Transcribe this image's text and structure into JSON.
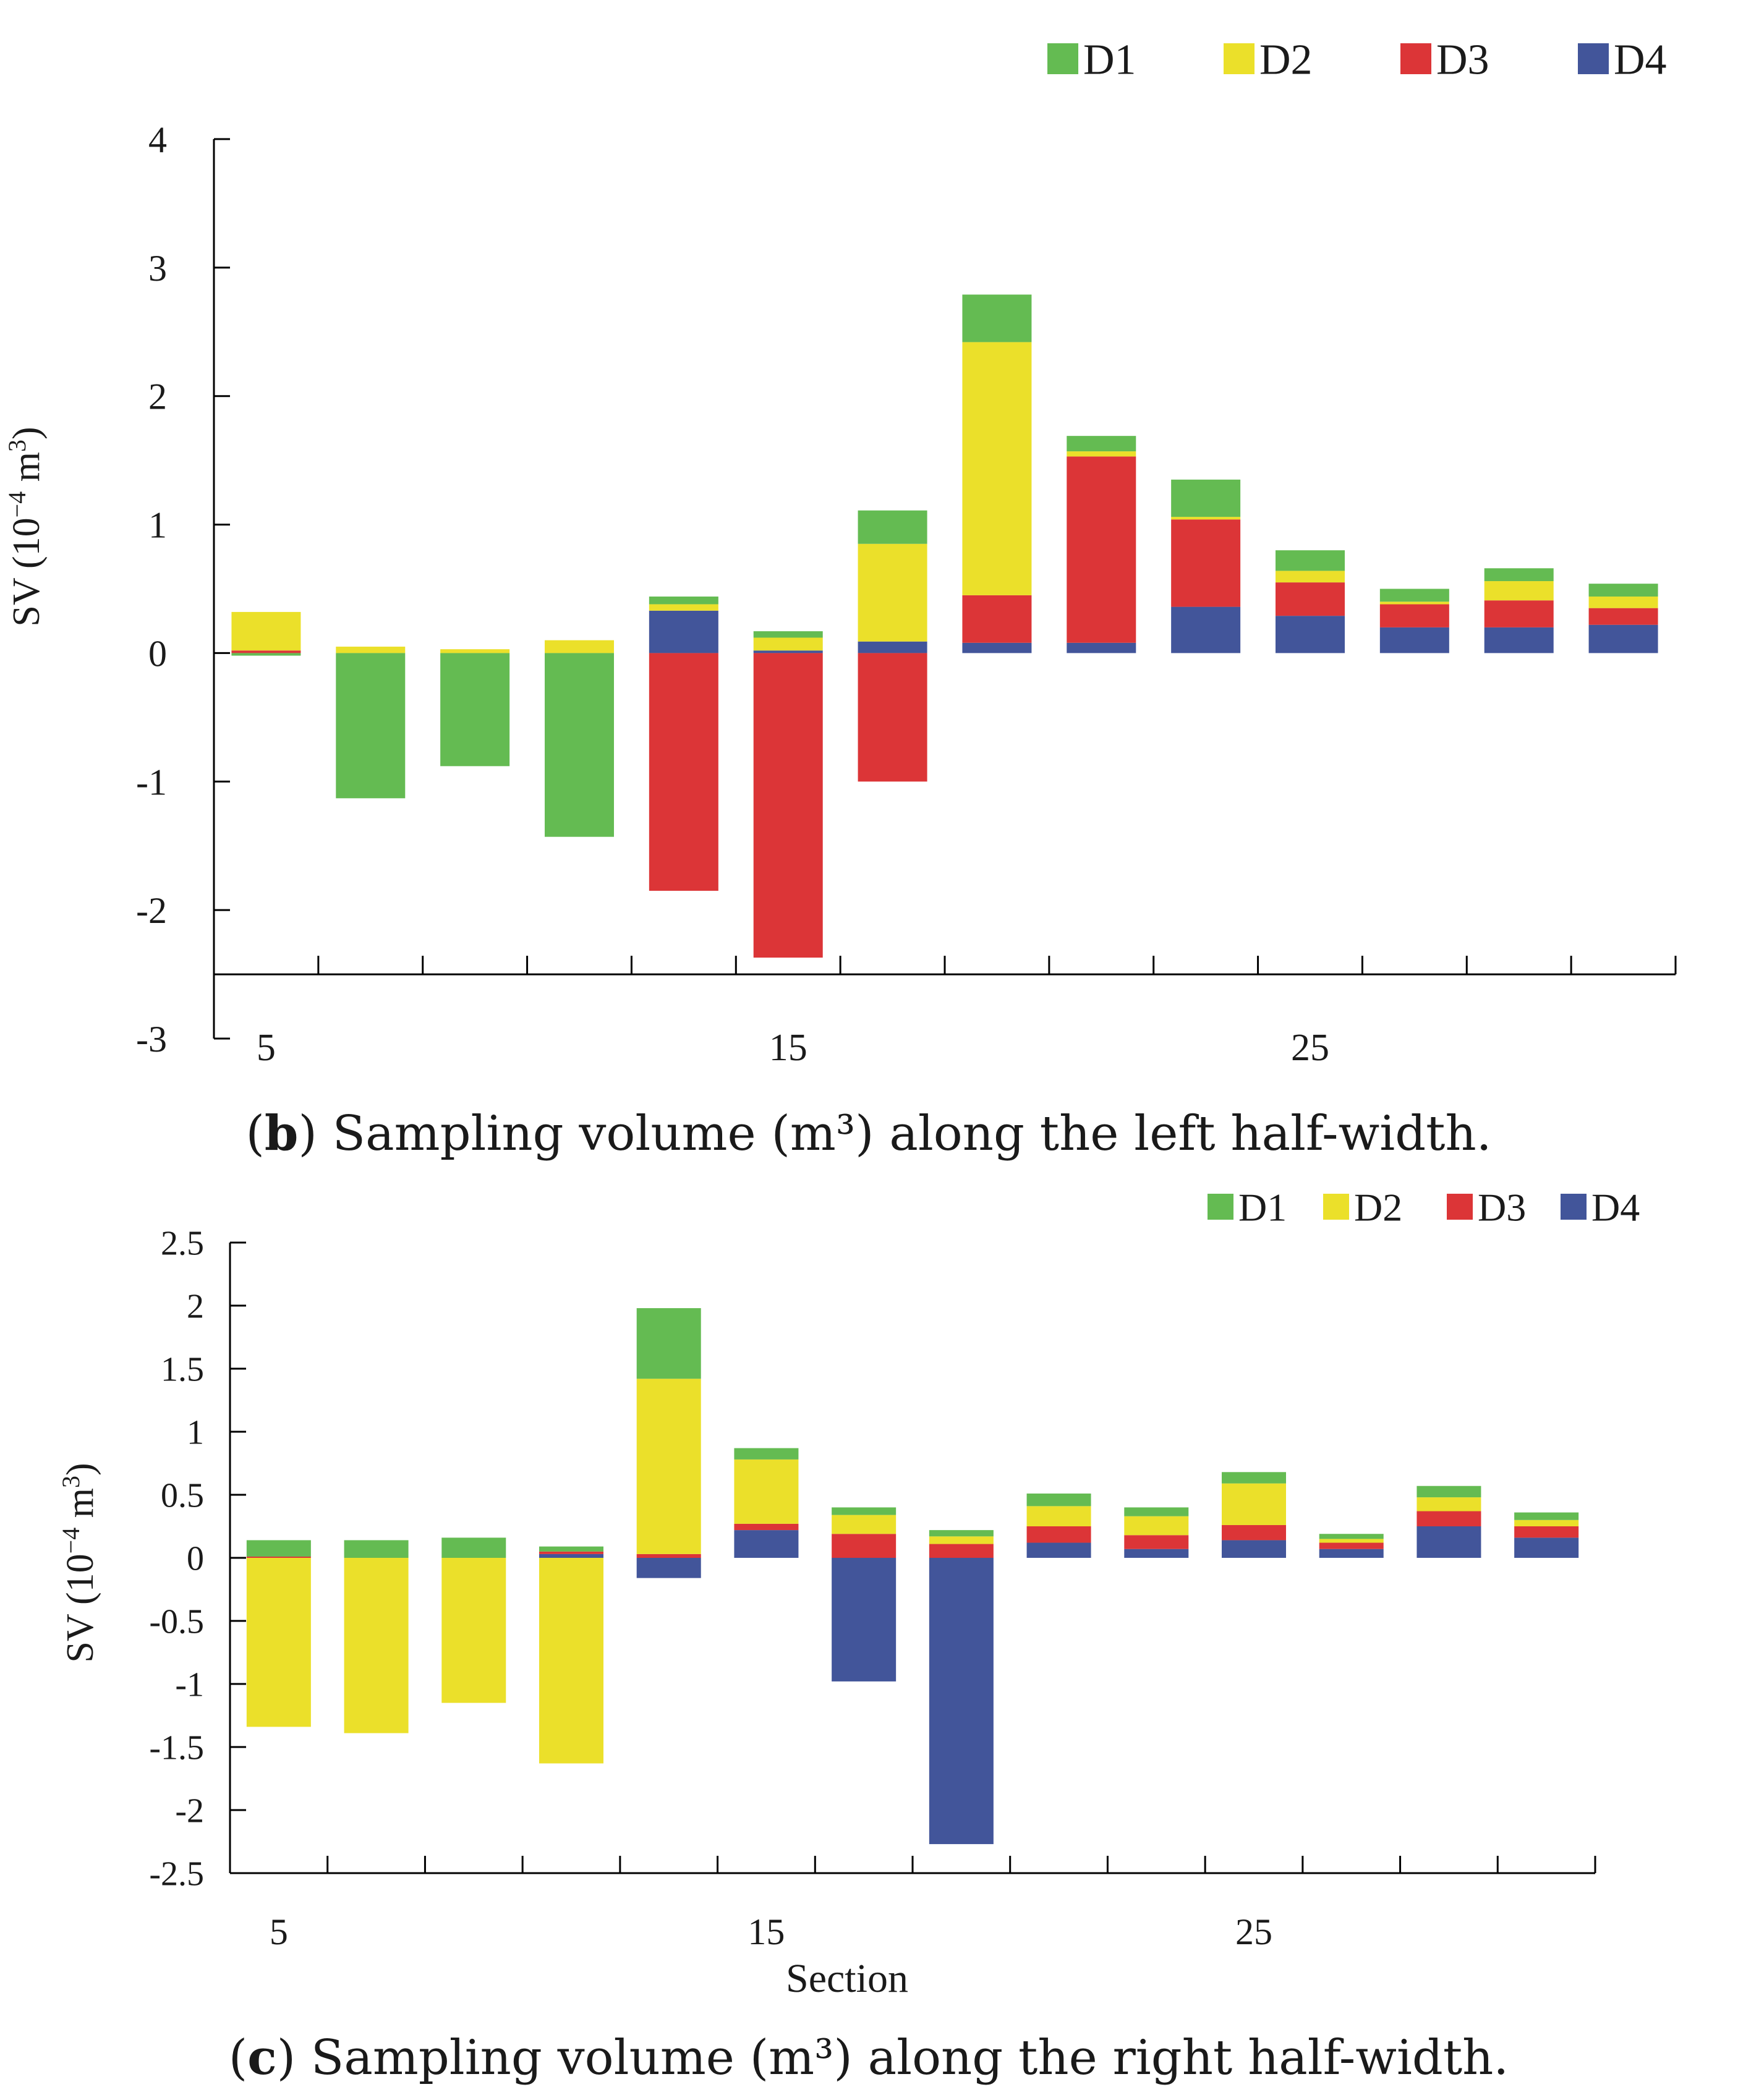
{
  "colors": {
    "D1": "#64bb52",
    "D2": "#ebe02a",
    "D3": "#dc3537",
    "D4": "#42559a",
    "axis": "#000000",
    "text": "#1a1a1a"
  },
  "chart_data": [
    {
      "id": "b",
      "type": "bar",
      "stacked": true,
      "title": "",
      "caption_letter": "b",
      "caption_text": ") Sampling volume (m³) along the left half-width.",
      "ylabel_main": "SV (10",
      "ylabel_exp": "−4",
      "ylabel_unit": " m",
      "ylabel_unit_exp": "3",
      "ylabel_close": ")",
      "xlabel": "",
      "ylim": [
        -3,
        4
      ],
      "yticks": [
        4,
        3,
        2,
        1,
        0,
        -1,
        -2,
        -3
      ],
      "ytick_labels": [
        "4",
        "3",
        "2",
        "1",
        "0",
        "-1",
        "-2",
        "-3"
      ],
      "xlim": [
        4,
        32
      ],
      "xticks": [
        5,
        15,
        25
      ],
      "xtick_labels": [
        "5",
        "15",
        "25"
      ],
      "x_axis_at": -2.5,
      "legend_position": "top-right",
      "categories": [
        5,
        7,
        9,
        11,
        13,
        15,
        17,
        19,
        21,
        23,
        25,
        27,
        29,
        31
      ],
      "series": [
        {
          "name": "D1",
          "values": [
            -0.02,
            -1.13,
            -0.88,
            -1.43,
            0.06,
            0.05,
            0.26,
            0.37,
            0.12,
            0.29,
            0.16,
            0.1,
            0.1,
            0.1
          ]
        },
        {
          "name": "D2",
          "values": [
            0.3,
            0.05,
            0.03,
            0.1,
            0.05,
            0.1,
            0.76,
            1.97,
            0.04,
            0.02,
            0.09,
            0.02,
            0.15,
            0.09
          ]
        },
        {
          "name": "D3",
          "values": [
            0.02,
            0.0,
            0.0,
            0.0,
            -1.85,
            -2.37,
            -1.0,
            0.37,
            1.45,
            0.68,
            0.26,
            0.18,
            0.21,
            0.13
          ]
        },
        {
          "name": "D4",
          "values": [
            0.0,
            0.0,
            0.0,
            0.0,
            0.33,
            0.02,
            0.09,
            0.08,
            0.08,
            0.36,
            0.29,
            0.2,
            0.2,
            0.22
          ]
        }
      ]
    },
    {
      "id": "c",
      "type": "bar",
      "stacked": true,
      "title": "",
      "caption_letter": "c",
      "caption_text": ") Sampling volume (m³) along the right half-width.",
      "ylabel_main": "SV (10",
      "ylabel_exp": "−4",
      "ylabel_unit": " m",
      "ylabel_unit_exp": "3",
      "ylabel_close": ")",
      "xlabel": "Section",
      "ylim": [
        -2.5,
        2.5
      ],
      "yticks": [
        2.5,
        2,
        1.5,
        1,
        0.5,
        0,
        -0.5,
        -1,
        -1.5,
        -2,
        -2.5
      ],
      "ytick_labels": [
        "2.5",
        "2",
        "1.5",
        "1",
        "0.5",
        "0",
        "-0.5",
        "-1",
        "-1.5",
        "-2",
        "-2.5"
      ],
      "xlim": [
        4,
        32
      ],
      "xticks": [
        5,
        15,
        25
      ],
      "xtick_labels": [
        "5",
        "15",
        "25"
      ],
      "x_axis_at": -2.5,
      "legend_position": "top-right",
      "categories": [
        5,
        7,
        9,
        11,
        13,
        15,
        17,
        19,
        21,
        23,
        25,
        27,
        29,
        31
      ],
      "series": [
        {
          "name": "D1",
          "values": [
            0.13,
            0.14,
            0.16,
            0.04,
            0.56,
            0.09,
            0.06,
            0.05,
            0.1,
            0.07,
            0.09,
            0.04,
            0.09,
            0.06
          ]
        },
        {
          "name": "D2",
          "values": [
            -1.34,
            -1.39,
            -1.15,
            -1.63,
            1.39,
            0.51,
            0.15,
            0.06,
            0.16,
            0.15,
            0.33,
            0.03,
            0.11,
            0.05
          ]
        },
        {
          "name": "D3",
          "values": [
            0.01,
            0.0,
            0.0,
            0.02,
            0.03,
            0.05,
            0.19,
            0.11,
            0.13,
            0.11,
            0.12,
            0.05,
            0.12,
            0.09
          ]
        },
        {
          "name": "D4",
          "values": [
            0.0,
            0.0,
            0.0,
            0.03,
            -0.16,
            0.22,
            -0.98,
            -2.27,
            0.12,
            0.07,
            0.14,
            0.07,
            0.25,
            0.16
          ]
        }
      ]
    }
  ],
  "legend": {
    "items": [
      "D1",
      "D2",
      "D3",
      "D4"
    ]
  }
}
